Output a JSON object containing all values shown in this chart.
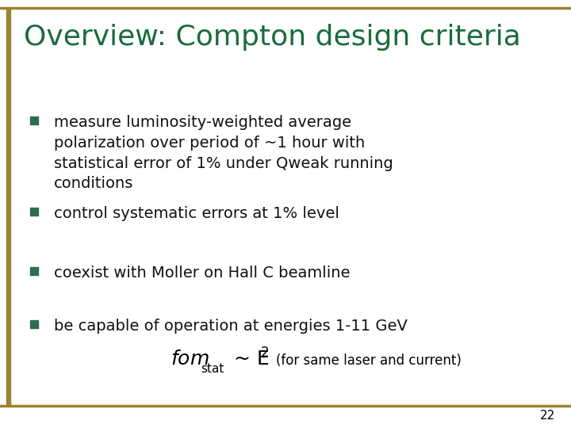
{
  "title": "Overview: Compton design criteria",
  "title_color": "#1a6b3c",
  "title_fontsize": 26,
  "background_color": "#ffffff",
  "bullet_color": "#111111",
  "bullet_square_color": "#2d6e4e",
  "bullet_square_fill": "#2d6e4e",
  "bullets": [
    "measure luminosity-weighted average\npolarization over period of ~1 hour with\nstatistical error of 1% under Qweak running\nconditions",
    "control systematic errors at 1% level",
    "coexist with Moller on Hall C beamline",
    "be capable of operation at energies 1-11 GeV"
  ],
  "formula_note": "(for same laser and current)",
  "bullet_fontsize": 14,
  "page_number": "22",
  "border_color": "#9b8330",
  "left_bar_color": "#9b8330"
}
